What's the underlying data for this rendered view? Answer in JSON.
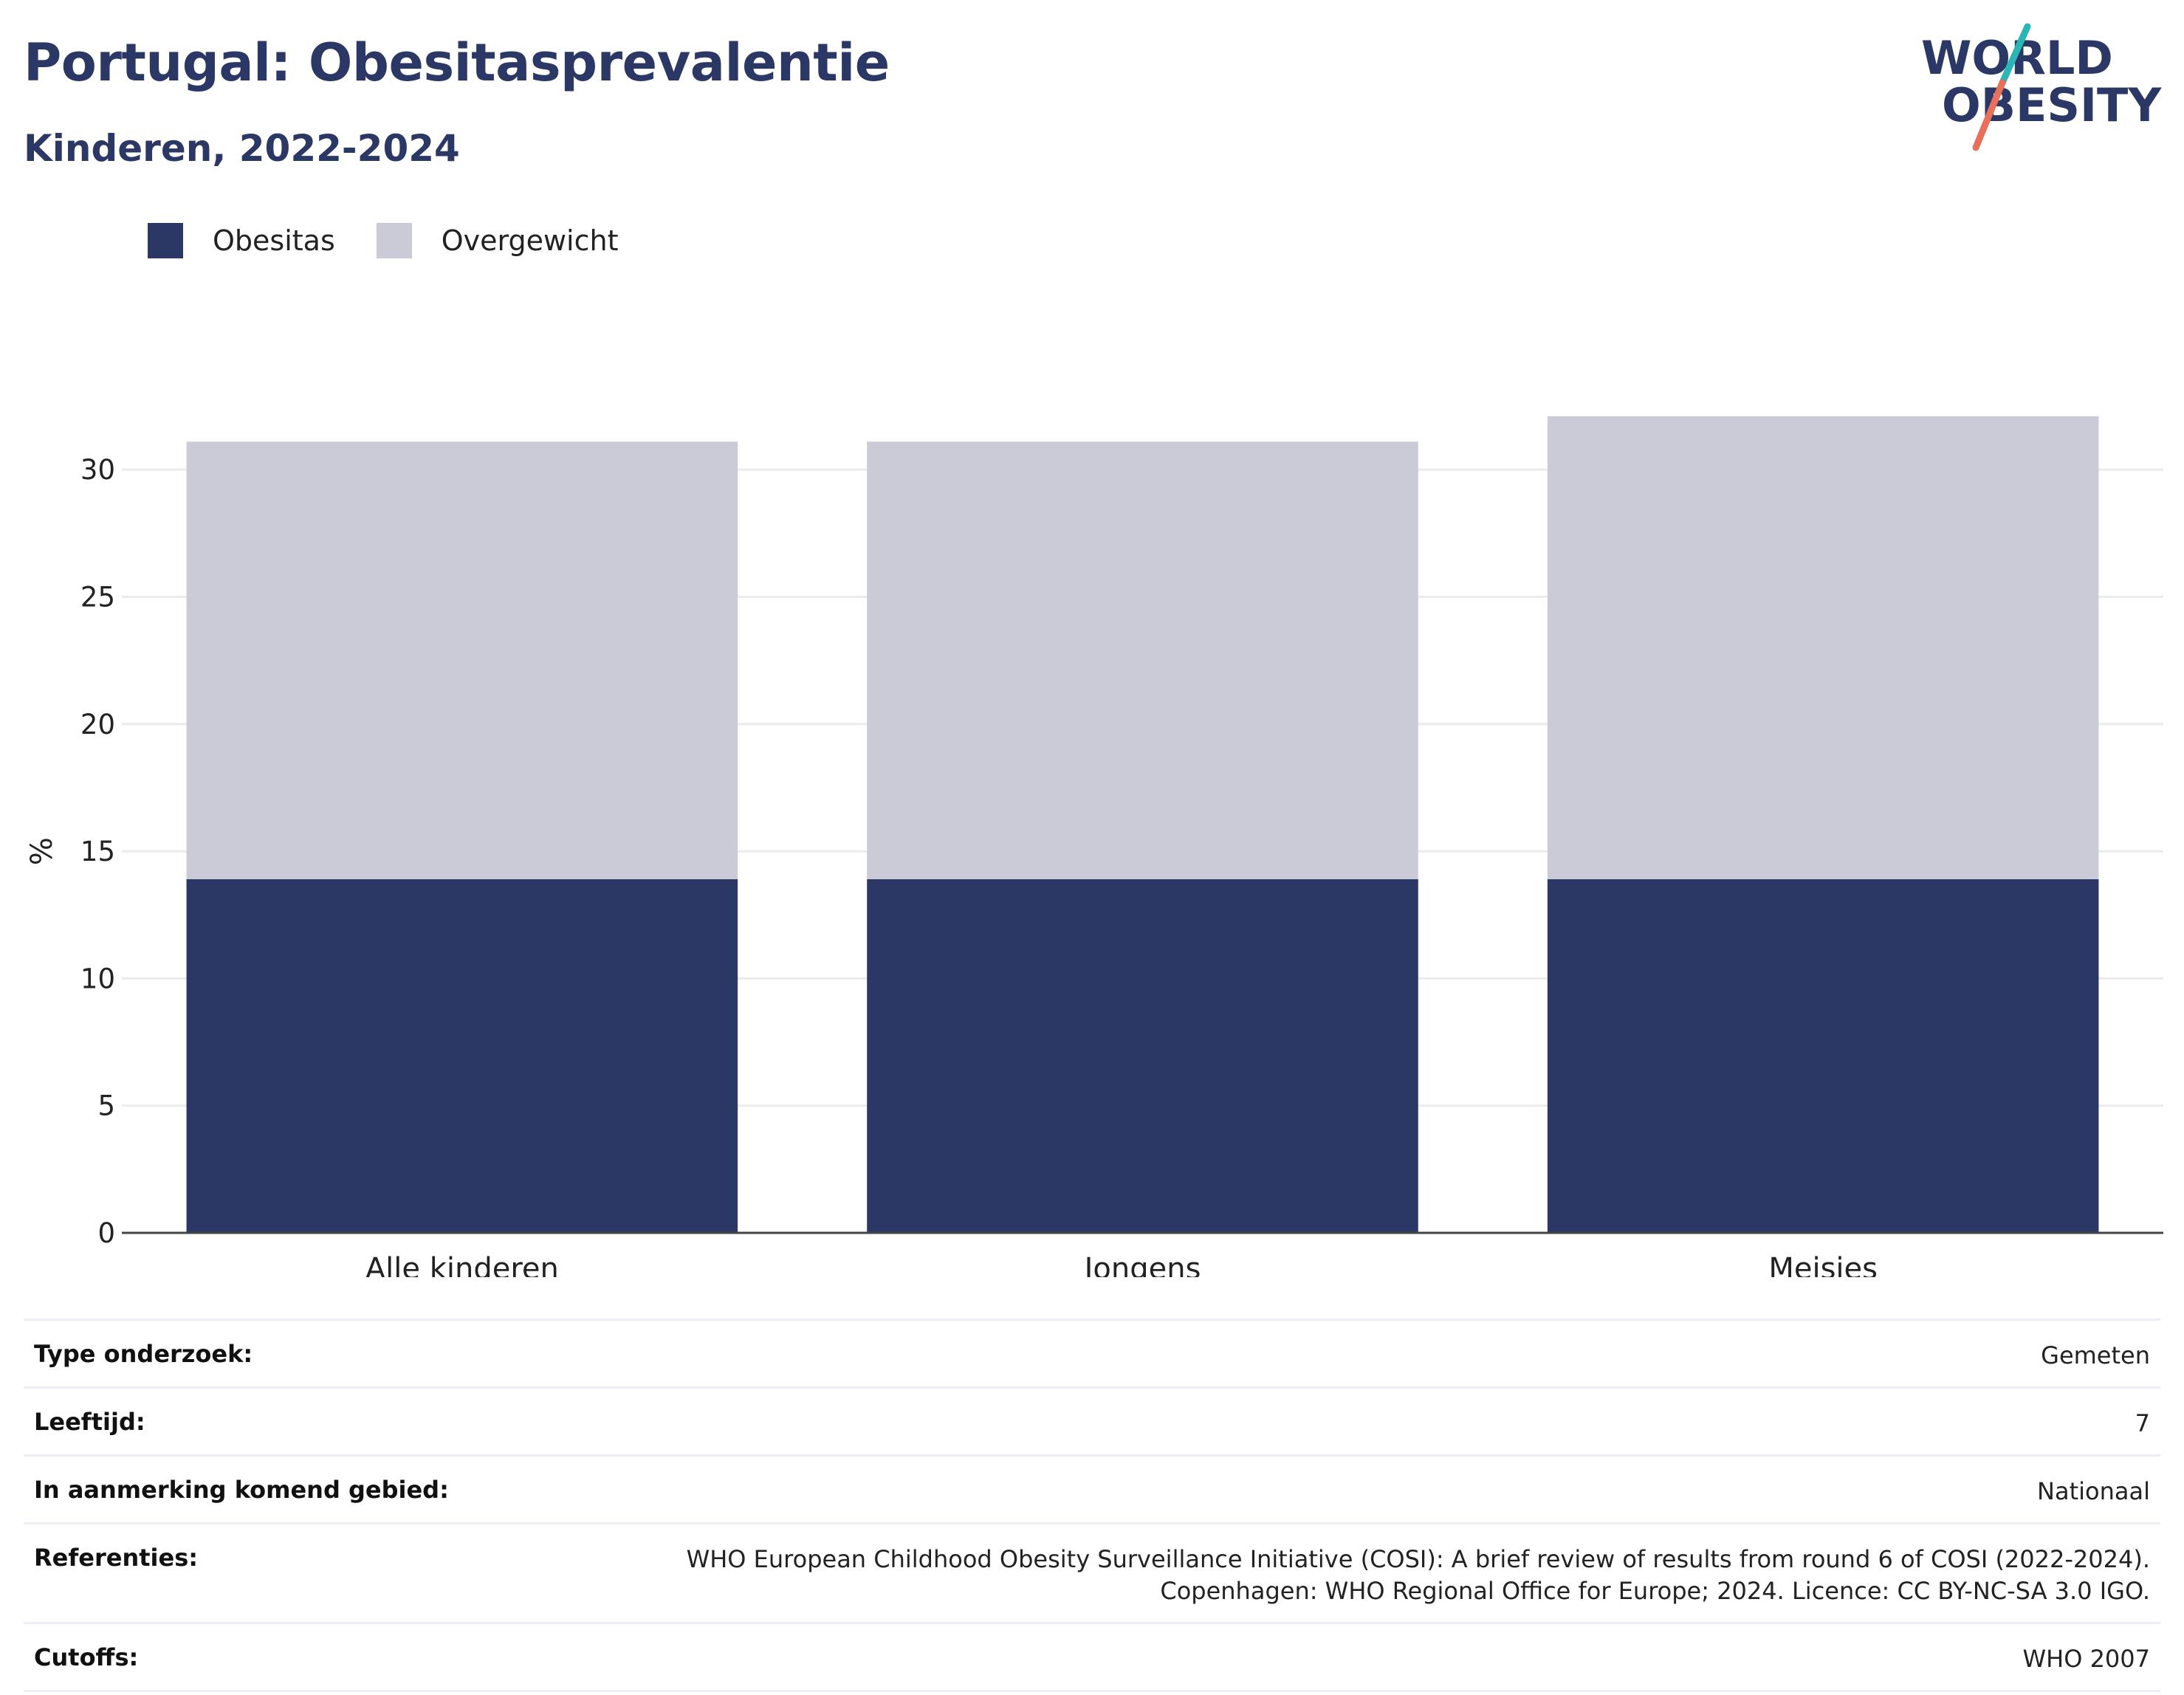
{
  "header": {
    "title": "Portugal: Obesitasprevalentie",
    "subtitle": "Kinderen, 2022-2024"
  },
  "logo": {
    "line1": "WORLD",
    "line2": "OBESITY",
    "colors": {
      "text": "#2b3764",
      "teal": "#2bb5b5",
      "coral": "#e8705a"
    }
  },
  "legend": [
    {
      "label": "Obesitas",
      "color": "#2b3764"
    },
    {
      "label": "Overgewicht",
      "color": "#cacbd7"
    }
  ],
  "chart_data": {
    "type": "bar",
    "stacked": true,
    "categories": [
      "Alle kinderen",
      "Jongens",
      "Meisjes"
    ],
    "series": [
      {
        "name": "Obesitas",
        "color": "#2b3764",
        "values": [
          13.9,
          13.9,
          13.9
        ]
      },
      {
        "name": "Overgewicht",
        "color": "#cacbd7",
        "values": [
          17.2,
          17.2,
          18.2
        ]
      }
    ],
    "ylabel": "%",
    "ylim": [
      0,
      32.5
    ],
    "yticks": [
      0,
      5,
      10,
      15,
      20,
      25,
      30
    ],
    "grid": true,
    "legend_position": "top-left"
  },
  "info": [
    {
      "key": "Type onderzoek:",
      "value": "Gemeten"
    },
    {
      "key": "Leeftijd:",
      "value": "7"
    },
    {
      "key": "In aanmerking komend gebied:",
      "value": "Nationaal"
    },
    {
      "key": "Referenties:",
      "value": "WHO European Childhood Obesity Surveillance Initiative (COSI): A brief review of results from round 6 of COSI (2022-2024).\nCopenhagen: WHO Regional Office for Europe; 2024. Licence: CC BY-NC-SA 3.0 IGO."
    },
    {
      "key": "Cutoffs:",
      "value": "WHO 2007"
    }
  ]
}
